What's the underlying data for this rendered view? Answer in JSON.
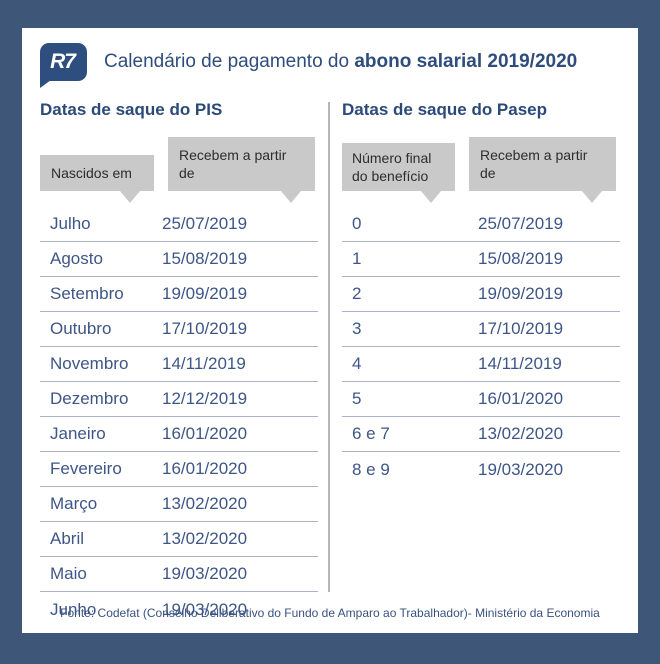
{
  "header": {
    "logo_text": "R7",
    "title_regular": "Calendário de pagamento do ",
    "title_bold": "abono salarial 2019/2020"
  },
  "pis": {
    "title": "Datas de saque do PIS",
    "col1_header": "Nascidos em",
    "col2_header": "Recebem a partir de",
    "rows": [
      {
        "label": "Julho",
        "date": "25/07/2019"
      },
      {
        "label": "Agosto",
        "date": "15/08/2019"
      },
      {
        "label": "Setembro",
        "date": "19/09/2019"
      },
      {
        "label": "Outubro",
        "date": "17/10/2019"
      },
      {
        "label": "Novembro",
        "date": "14/11/2019"
      },
      {
        "label": "Dezembro",
        "date": "12/12/2019"
      },
      {
        "label": "Janeiro",
        "date": "16/01/2020"
      },
      {
        "label": "Fevereiro",
        "date": "16/01/2020"
      },
      {
        "label": "Março",
        "date": "13/02/2020"
      },
      {
        "label": "Abril",
        "date": "13/02/2020"
      },
      {
        "label": "Maio",
        "date": "19/03/2020"
      },
      {
        "label": "Junho",
        "date": "19/03/2020"
      }
    ]
  },
  "pasep": {
    "title": "Datas de saque do Pasep",
    "col1_header": "Número final do benefício",
    "col2_header": "Recebem a partir de",
    "rows": [
      {
        "label": "0",
        "date": "25/07/2019"
      },
      {
        "label": "1",
        "date": "15/08/2019"
      },
      {
        "label": "2",
        "date": "19/09/2019"
      },
      {
        "label": "3",
        "date": "17/10/2019"
      },
      {
        "label": "4",
        "date": "14/11/2019"
      },
      {
        "label": "5",
        "date": "16/01/2020"
      },
      {
        "label": "6 e 7",
        "date": "13/02/2020"
      },
      {
        "label": "8 e 9",
        "date": "19/03/2020"
      }
    ]
  },
  "footer": {
    "source": "Fonte: Codefat (Conselho Deliberativo do Fundo de Amparo ao Trabalhador)- Ministério da Economia"
  },
  "colors": {
    "frame": "#3e5778",
    "logo_bg": "#2e4e80",
    "title_text": "#2f4d7c",
    "section_title": "#2b4a78",
    "table_text": "#3e5687",
    "bubble_bg": "#c9c9c9",
    "bubble_text": "#2d2d2d",
    "row_line": "#a9b2c8",
    "divider": "#b5b5b5"
  }
}
